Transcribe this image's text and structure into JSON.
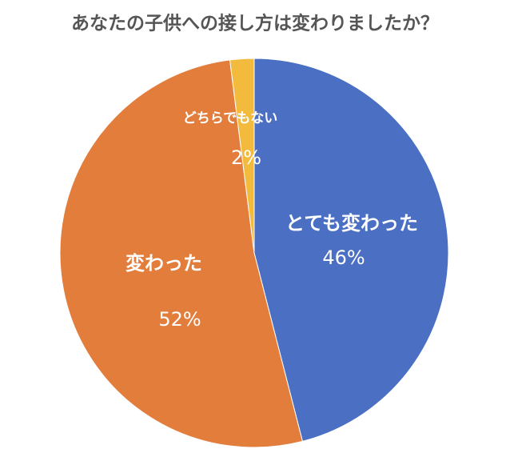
{
  "chart_data": {
    "type": "pie",
    "title": "あなたの子供への接し方は変わりましたか？",
    "categories": [
      "とても変わった",
      "変わった",
      "どちらでもない"
    ],
    "values": [
      46,
      52,
      2
    ],
    "value_labels": [
      "46%",
      "52%",
      "2%"
    ],
    "colors": [
      "#4a6fc3",
      "#e27d3c",
      "#f3bb3d"
    ]
  }
}
